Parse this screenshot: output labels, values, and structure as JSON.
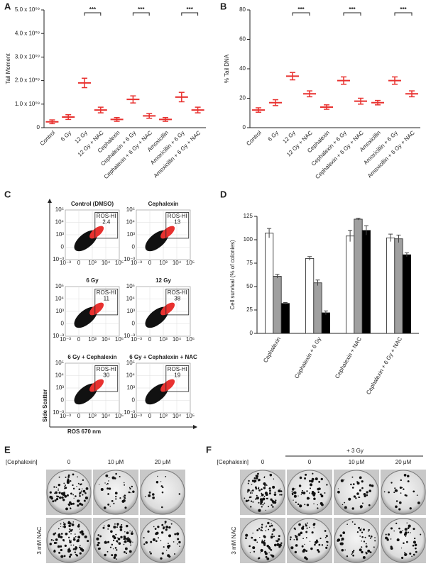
{
  "panel_labels": [
    "A",
    "B",
    "C",
    "D",
    "E",
    "F"
  ],
  "chart_data": [
    {
      "type": "dot",
      "ylabel": "Tail Moment",
      "categories": [
        "Control",
        "6 Gy",
        "12 Gy",
        "12 Gy + NAC",
        "Cephalexin",
        "Cephalexin + 6 Gy",
        "Cephalexin + 6 Gy + NAC",
        "Amoxicillin",
        "Amoxicillin + 6 Gy",
        "Amoxicillin + 6 Gy + NAC"
      ],
      "values": [
        250000000.0,
        450000000.0,
        1900000000.0,
        750000000.0,
        350000000.0,
        1200000000.0,
        500000000.0,
        350000000.0,
        1300000000.0,
        750000000.0
      ],
      "errors": [
        80000000.0,
        100000000.0,
        200000000.0,
        120000000.0,
        80000000.0,
        150000000.0,
        100000000.0,
        80000000.0,
        200000000.0,
        120000000.0
      ],
      "color": "#e8312f",
      "ylim": [
        0,
        5000000000.0
      ],
      "yticks": [
        0,
        {
          "value": 1000000000.0,
          "label": "1.0 x 10⁰⁹"
        },
        {
          "value": 2000000000.0,
          "label": "2.0 x 10⁰⁹"
        },
        {
          "value": 3000000000.0,
          "label": "3.0 x 10⁰⁹"
        },
        {
          "value": 4000000000.0,
          "label": "4.0 x 10⁰⁹"
        },
        {
          "value": 5000000000.0,
          "label": "5.0 x 10⁰⁹"
        }
      ],
      "significance": [
        {
          "label": "***",
          "between": [
            "12 Gy",
            "12 Gy + NAC"
          ]
        },
        {
          "label": "***",
          "between": [
            "Cephalexin + 6 Gy",
            "Cephalexin + 6 Gy + NAC"
          ]
        },
        {
          "label": "***",
          "between": [
            "Amoxicillin + 6 Gy",
            "Amoxicillin + 6 Gy + NAC"
          ]
        }
      ]
    },
    {
      "type": "dot",
      "ylabel": "% Tail DNA",
      "categories": [
        "Control",
        "6 Gy",
        "12 Gy",
        "12 Gy + NAC",
        "Cephalexin",
        "Cephalexin + 6 Gy",
        "Cephalexin + 6 Gy + NAC",
        "Amoxicillin",
        "Amoxicillin + 6 Gy",
        "Amoxicillin + 6 Gy + NAC"
      ],
      "values": [
        12,
        17,
        35,
        23,
        14,
        32,
        18,
        17,
        32,
        23
      ],
      "errors": [
        1.5,
        2,
        2.5,
        2,
        1.5,
        2.5,
        2,
        1.5,
        2.5,
        2
      ],
      "color": "#e8312f",
      "ylim": [
        0,
        80
      ],
      "yticks": [
        0,
        20,
        40,
        60,
        80
      ],
      "significance": [
        {
          "label": "***",
          "between": [
            "12 Gy",
            "12 Gy + NAC"
          ]
        },
        {
          "label": "***",
          "between": [
            "Cephalexin + 6 Gy",
            "Cephalexin + 6 Gy + NAC"
          ]
        },
        {
          "label": "***",
          "between": [
            "Amoxicillin + 6 Gy",
            "Amoxicillin + 6 Gy + NAC"
          ]
        }
      ]
    },
    {
      "type": "bar",
      "ylabel": "Cell survival (% of colonies)",
      "categories": [
        "Cephalexin",
        "Cephalexin + 6 Gy",
        "Cephalexin + NAC",
        "Cephalexin + 6 Gy + NAC"
      ],
      "series": [
        {
          "color": "#ffffff",
          "values": [
            107,
            80,
            104,
            102
          ],
          "errors": [
            5,
            2,
            6,
            4
          ]
        },
        {
          "color": "#a0a0a0",
          "values": [
            61,
            54,
            122,
            101
          ],
          "errors": [
            2,
            3,
            1,
            4
          ]
        },
        {
          "color": "#000000",
          "values": [
            32,
            22,
            110,
            84
          ],
          "errors": [
            1,
            2,
            5,
            2
          ]
        }
      ],
      "ylim": [
        0,
        125
      ],
      "yticks": [
        0,
        25,
        50,
        75,
        100,
        125
      ]
    }
  ],
  "flow": {
    "xlabel": "ROS 670 nm",
    "ylabel": "Side Scatter",
    "xticks": [
      "10⁻³",
      "0",
      "10³",
      "10⁴",
      "10⁵"
    ],
    "yticks": [
      "10⁵",
      "10⁴",
      "10³",
      "0",
      "10⁻³"
    ],
    "plots": [
      {
        "title": "Control (DMSO)",
        "gate": "ROS-HI",
        "value": 2.4
      },
      {
        "title": "Cephalexin",
        "gate": "ROS-HI",
        "value": 13
      },
      {
        "title": "6 Gy",
        "gate": "ROS-HI",
        "value": 11
      },
      {
        "title": "12 Gy",
        "gate": "ROS-HI",
        "value": 38
      },
      {
        "title": "6 Gy + Cephalexin",
        "gate": "ROS-HI",
        "value": 30
      },
      {
        "title": "6 Gy + Cephalexin + NAC",
        "gate": "ROS-HI",
        "value": 19
      }
    ]
  },
  "plates": {
    "E": {
      "title": "[Cephalexin]",
      "columns": [
        "0",
        "10 μM",
        "20 μM"
      ],
      "row_label": "3 mM NAC"
    },
    "F": {
      "title": "[Cephalexin]",
      "treatment": "+ 3 Gy",
      "columns": [
        "0",
        "0",
        "10 μM",
        "20 μM"
      ],
      "row_label": "3 mM NAC"
    }
  }
}
